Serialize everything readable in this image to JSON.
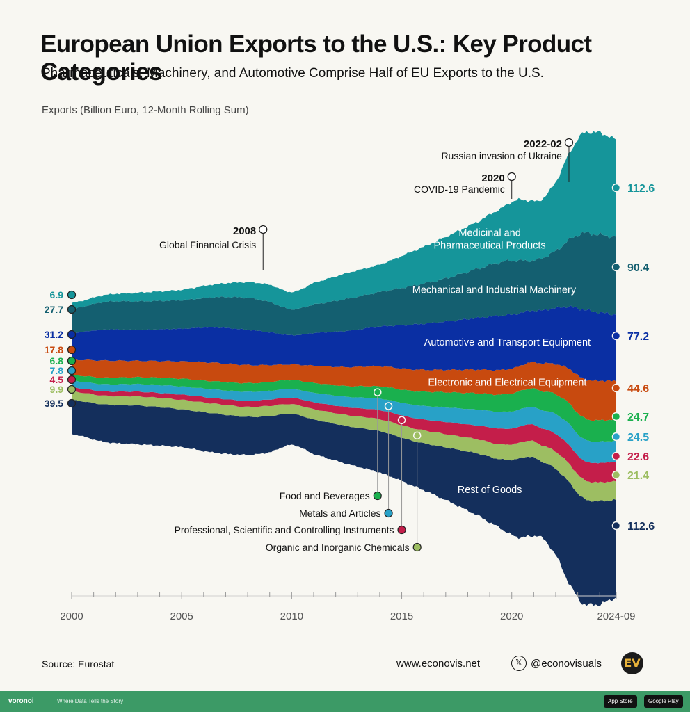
{
  "header": {
    "title": "European Union Exports to the U.S.: Key Product Categories",
    "subtitle": "Pharmaceuticals, Machinery, and Automotive Comprise Half of EU Exports to the U.S.",
    "axis_title": "Exports (Billion Euro, 12-Month Rolling Sum)"
  },
  "footer": {
    "source": "Source: Eurostat",
    "website": "www.econovis.net",
    "handle": "@econovisuals",
    "logo_text": "EV",
    "x_icon_glyph": "𝕏",
    "brand": "voronoi",
    "tagline": "Where Data Tells the Story",
    "app_store": "App Store",
    "google_play": "Google Play",
    "bar_color": "#3c9a66"
  },
  "chart_data": {
    "type": "area",
    "layout": "streamgraph",
    "x_ticks": [
      "2000",
      "2005",
      "2010",
      "2015",
      "2020",
      "2024-09"
    ],
    "x_range": [
      2000.0,
      2024.75
    ],
    "anchors": [
      2000.0,
      2001.5,
      2003.0,
      2005.0,
      2006.5,
      2008.0,
      2009.0,
      2010.0,
      2011.0,
      2012.5,
      2014.0,
      2015.5,
      2017.0,
      2018.5,
      2019.5,
      2020.2,
      2020.8,
      2021.3,
      2022.0,
      2022.6,
      2023.2,
      2023.8,
      2024.3,
      2024.75
    ],
    "series": [
      {
        "name": "Rest of Goods",
        "label": "Rest of Goods",
        "color": "#142f5c",
        "start": 39.5,
        "end": 112.6,
        "values": [
          39.5,
          43.5,
          45,
          44,
          45.5,
          44,
          42,
          36,
          40,
          44,
          48,
          52,
          61,
          72,
          80,
          90,
          93,
          88,
          100,
          117,
          122,
          120,
          118,
          112.6
        ]
      },
      {
        "name": "Organic and Inorganic Chemicals",
        "label": "Organic and Inorganic Chemicals",
        "color": "#9dbe62",
        "start": 9.9,
        "end": 21.4,
        "values": [
          9.9,
          10.2,
          10.5,
          11,
          11.3,
          11.6,
          11.8,
          11.3,
          12,
          12.8,
          13.8,
          14.8,
          15.5,
          16.5,
          17.5,
          18,
          18.5,
          19,
          20,
          21.5,
          22,
          21.8,
          21.6,
          21.4
        ]
      },
      {
        "name": "Professional, Scientific and Controlling Instruments",
        "label": "Professional, Scientific and Controlling Instruments",
        "color": "#c41e4a",
        "start": 4.5,
        "end": 22.6,
        "values": [
          4.5,
          5,
          5.5,
          6,
          6.5,
          7,
          7.3,
          7.5,
          8,
          9,
          10.5,
          12,
          14,
          16,
          18,
          18.5,
          19,
          19.5,
          20.5,
          21.5,
          22,
          22.4,
          22.5,
          22.6
        ]
      },
      {
        "name": "Metals and Articles",
        "label": "Metals and Articles",
        "color": "#28a1c7",
        "start": 7.8,
        "end": 24.5,
        "values": [
          7.8,
          8.3,
          8.8,
          9.5,
          10,
          10.5,
          10.2,
          10,
          11,
          12,
          13.5,
          15,
          17,
          18.5,
          19.5,
          19.8,
          20,
          21,
          23,
          24.5,
          25,
          24.8,
          24.6,
          24.5
        ]
      },
      {
        "name": "Food and Beverages",
        "label": "Food and Beverages",
        "color": "#1ab04e",
        "start": 6.8,
        "end": 24.7,
        "values": [
          6.8,
          7.5,
          8,
          9,
          9.5,
          10,
          10.3,
          10.5,
          11.5,
          12.5,
          14,
          16,
          17.5,
          19,
          20,
          21,
          21.5,
          22,
          23,
          24,
          24.5,
          24.7,
          24.7,
          24.7
        ]
      },
      {
        "name": "Electronic and Electrical Equipment",
        "label": "Electronic and Electrical Equipment",
        "color": "#c84a0f",
        "start": 17.8,
        "end": 44.6,
        "values": [
          17.8,
          20,
          19,
          20,
          21.5,
          21,
          19.5,
          18,
          20,
          22,
          23.5,
          25,
          26,
          27.5,
          28.5,
          29,
          30,
          32,
          35,
          40,
          45,
          46,
          45.5,
          44.6
        ]
      },
      {
        "name": "Automotive and Transport Equipment",
        "label": "Automotive and  Transport Equipment",
        "color": "#0a2fa3",
        "start": 31.2,
        "end": 77.2,
        "values": [
          31.2,
          36,
          36,
          38,
          41,
          41,
          38,
          34,
          38,
          42,
          46,
          52,
          56,
          60,
          63,
          62,
          60,
          61,
          65,
          72,
          80,
          80,
          78,
          77.2
        ]
      },
      {
        "name": "Mechanical and Industrial Machinery",
        "label": "Mechanical and Industrial Machinery",
        "color": "#145f70",
        "start": 27.7,
        "end": 90.4,
        "values": [
          27.7,
          32,
          33,
          33,
          35,
          37,
          35,
          30,
          33,
          37,
          40,
          45,
          50,
          57,
          62,
          62,
          58,
          60,
          66,
          77,
          88,
          90,
          90,
          90.4
        ]
      },
      {
        "name": "Medicinal and Pharmaceutical Products",
        "label": "Medicinal and\nPharmaceutical Products",
        "color": "#15959a",
        "start": 6.9,
        "end": 112.6,
        "values": [
          6.9,
          8,
          10,
          12,
          15,
          18,
          20,
          20,
          25,
          30,
          32,
          40,
          48,
          55,
          62,
          70,
          70,
          68,
          80,
          100,
          115,
          118,
          117,
          112.6
        ]
      }
    ],
    "annotations": [
      {
        "year_label": "2008",
        "text": "Global Financial Crisis"
      },
      {
        "year_label": "2020",
        "text": "COVID-19 Pandemic"
      },
      {
        "year_label": "2022-02",
        "text": "Russian invasion of Ukraine"
      }
    ]
  }
}
